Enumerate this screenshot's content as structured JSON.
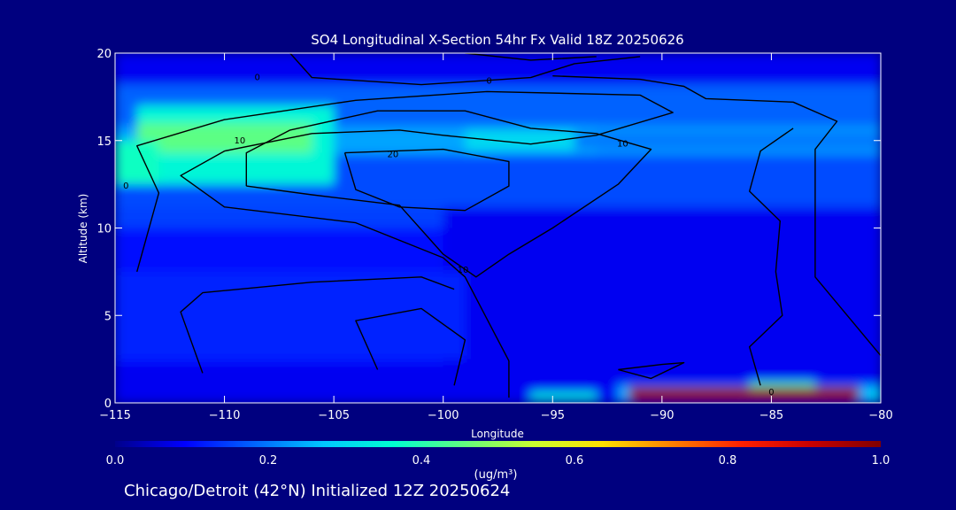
{
  "chart_data": {
    "type": "heatmap",
    "title": "SO4 Longitudinal X-Section 54hr  Fx Valid 18Z 20250626",
    "xlabel": "Longitude",
    "ylabel": "Altitude (km)",
    "xlim": [
      -115,
      -80
    ],
    "ylim": [
      0,
      20
    ],
    "x_ticks": [
      "−115",
      "−110",
      "−105",
      "−100",
      "−95",
      "−90",
      "−85",
      "−80"
    ],
    "x_tick_values": [
      -115,
      -110,
      -105,
      -100,
      -95,
      -90,
      -85,
      -80
    ],
    "y_ticks": [
      "0",
      "5",
      "10",
      "15",
      "20"
    ],
    "y_tick_values": [
      0,
      5,
      10,
      15,
      20
    ],
    "colorbar": {
      "label": "(ug/m³)",
      "range": [
        0.0,
        1.0
      ],
      "ticks": [
        "0.0",
        "0.2",
        "0.4",
        "0.6",
        "0.8",
        "1.0"
      ],
      "tick_values": [
        0.0,
        0.2,
        0.4,
        0.6,
        0.8,
        1.0
      ],
      "colormap": [
        "#00008b",
        "#0000ff",
        "#0064ff",
        "#00c8ff",
        "#00ffd0",
        "#60ff80",
        "#c8ff30",
        "#ffe000",
        "#ff8000",
        "#ff2000",
        "#c80000",
        "#800000"
      ]
    },
    "field_bands": [
      {
        "lon": [
          -115,
          -80
        ],
        "alt": [
          0,
          20
        ],
        "value": 0.08
      },
      {
        "lon": [
          -115,
          -80
        ],
        "alt": [
          15.8,
          18.2
        ],
        "value": 0.18
      },
      {
        "lon": [
          -115,
          -80
        ],
        "alt": [
          14.2,
          15.8
        ],
        "value": 0.24
      },
      {
        "lon": [
          -115,
          -80
        ],
        "alt": [
          11.2,
          14.2
        ],
        "value": 0.16
      },
      {
        "lon": [
          -115,
          -100
        ],
        "alt": [
          10.0,
          11.2
        ],
        "value": 0.15
      },
      {
        "lon": [
          -115,
          -100
        ],
        "alt": [
          2.2,
          10.0
        ],
        "value": 0.1
      },
      {
        "lon": [
          -115,
          -99
        ],
        "alt": [
          2.5,
          7.5
        ],
        "value": 0.12
      },
      {
        "lon": [
          -114,
          -105
        ],
        "alt": [
          12.5,
          17.0
        ],
        "value": 0.35
      },
      {
        "lon": [
          -114,
          -106
        ],
        "alt": [
          14.3,
          16.0
        ],
        "value": 0.45
      },
      {
        "lon": [
          -115,
          -113
        ],
        "alt": [
          12.5,
          15.0
        ],
        "value": 0.38
      },
      {
        "lon": [
          -99,
          -93
        ],
        "alt": [
          14.4,
          15.6
        ],
        "value": 0.3
      },
      {
        "lon": [
          -94,
          -80
        ],
        "alt": [
          14.5,
          15.5
        ],
        "value": 0.2
      },
      {
        "lon": [
          -96,
          -93
        ],
        "alt": [
          0.2,
          0.6
        ],
        "value": 0.35
      },
      {
        "lon": [
          -92,
          -80
        ],
        "alt": [
          0.1,
          1.0
        ],
        "value": 0.25
      },
      {
        "lon": [
          -91.5,
          -81
        ],
        "alt": [
          0.1,
          0.9
        ],
        "value": 0.98
      },
      {
        "lon": [
          -86,
          -83
        ],
        "alt": [
          0.9,
          1.2
        ],
        "value": 0.4
      },
      {
        "lon": [
          -80.5,
          -80
        ],
        "alt": [
          0.1,
          0.8
        ],
        "value": 0.3
      }
    ],
    "contours": [
      {
        "level": 0,
        "points": [
          [
            -107,
            20
          ],
          [
            -106,
            18.6
          ],
          [
            -101,
            18.2
          ],
          [
            -96,
            18.6
          ],
          [
            -94,
            19.4
          ],
          [
            -91,
            19.8
          ]
        ]
      },
      {
        "level": 0,
        "points": [
          [
            -95,
            18.7
          ],
          [
            -91,
            18.5
          ],
          [
            -89,
            18.1
          ],
          [
            -88,
            17.4
          ],
          [
            -84,
            17.2
          ],
          [
            -82,
            16.1
          ],
          [
            -83,
            14.5
          ],
          [
            -83,
            7.2
          ],
          [
            -81,
            4.2
          ],
          [
            -80,
            2.7
          ]
        ]
      },
      {
        "level": 0,
        "points": [
          [
            -99,
            20
          ],
          [
            -96,
            19.6
          ],
          [
            -93,
            19.8
          ]
        ]
      },
      {
        "level": 10,
        "points": [
          [
            -114,
            7.5
          ],
          [
            -113,
            12
          ],
          [
            -114,
            14.7
          ],
          [
            -110,
            16.2
          ],
          [
            -104,
            17.3
          ],
          [
            -98,
            17.8
          ],
          [
            -91,
            17.6
          ],
          [
            -89.5,
            16.6
          ],
          [
            -93,
            15.3
          ],
          [
            -96,
            14.8
          ],
          [
            -100,
            15.3
          ],
          [
            -102,
            15.6
          ],
          [
            -106,
            15.4
          ],
          [
            -110,
            14.4
          ],
          [
            -112,
            13
          ],
          [
            -110,
            11.2
          ],
          [
            -104,
            10.3
          ],
          [
            -100,
            8.3
          ],
          [
            -99,
            7.2
          ],
          [
            -98,
            4.8
          ],
          [
            -97,
            2.4
          ],
          [
            -97,
            0.3
          ]
        ]
      },
      {
        "level": 10,
        "points": [
          [
            -109,
            12.4
          ],
          [
            -106,
            11.9
          ],
          [
            -102,
            11.3
          ],
          [
            -100,
            8.5
          ],
          [
            -98.5,
            7.2
          ],
          [
            -97,
            8.5
          ],
          [
            -95,
            10
          ],
          [
            -92,
            12.5
          ],
          [
            -90.5,
            14.5
          ],
          [
            -93,
            15.4
          ],
          [
            -96,
            15.7
          ],
          [
            -99,
            16.7
          ],
          [
            -103,
            16.7
          ],
          [
            -107,
            15.6
          ],
          [
            -109,
            14.3
          ],
          [
            -109,
            12.4
          ]
        ]
      },
      {
        "level": 20,
        "points": [
          [
            -104.5,
            14.3
          ],
          [
            -100,
            14.5
          ],
          [
            -97,
            13.8
          ],
          [
            -97,
            12.4
          ],
          [
            -99,
            11
          ],
          [
            -102,
            11.2
          ],
          [
            -104,
            12.2
          ],
          [
            -104.5,
            14.3
          ]
        ]
      },
      {
        "level": 0,
        "points": [
          [
            -111,
            1.7
          ],
          [
            -112,
            5.2
          ],
          [
            -111,
            6.3
          ],
          [
            -106,
            6.9
          ],
          [
            -101,
            7.2
          ],
          [
            -99.5,
            6.5
          ]
        ]
      },
      {
        "level": 0,
        "points": [
          [
            -103,
            1.9
          ],
          [
            -104,
            4.7
          ],
          [
            -101,
            5.4
          ],
          [
            -99,
            3.6
          ],
          [
            -99.5,
            1
          ]
        ]
      },
      {
        "level": 0,
        "points": [
          [
            -92,
            1.9
          ],
          [
            -90,
            2.2
          ],
          [
            -89,
            2.3
          ],
          [
            -90.5,
            1.4
          ],
          [
            -92,
            1.9
          ]
        ]
      },
      {
        "level": 0,
        "points": [
          [
            -85.5,
            1
          ],
          [
            -86,
            3.2
          ],
          [
            -84.5,
            5
          ],
          [
            -84.8,
            7.5
          ],
          [
            -84.6,
            10.4
          ],
          [
            -86,
            12.1
          ],
          [
            -85.5,
            14.4
          ],
          [
            -84,
            15.7
          ]
        ]
      }
    ],
    "contour_labels": [
      {
        "text": "0",
        "lon": -108.5,
        "alt": 18.6
      },
      {
        "text": "0",
        "lon": -97.9,
        "alt": 18.4
      },
      {
        "text": "10",
        "lon": -109.3,
        "alt": 15.0
      },
      {
        "text": "10",
        "lon": -91.8,
        "alt": 14.8
      },
      {
        "text": "20",
        "lon": -102.3,
        "alt": 14.2
      },
      {
        "text": "10",
        "lon": -99.1,
        "alt": 7.6
      },
      {
        "text": "0",
        "lon": -114.5,
        "alt": 12.4
      },
      {
        "text": "0",
        "lon": -85,
        "alt": 0.6
      }
    ]
  },
  "footer": {
    "caption": "Chicago/Detroit (42°N) Initialized 12Z 20250624"
  }
}
